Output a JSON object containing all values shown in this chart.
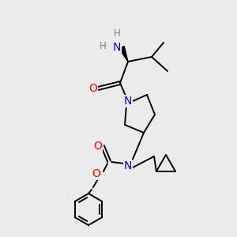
{
  "bg_color": "#ebebeb",
  "atom_colors": {
    "N": "#0000ff",
    "O": "#ff0000",
    "H_label": "#4a9090",
    "C": "#000000"
  },
  "figsize": [
    3.0,
    3.0
  ],
  "dpi": 100
}
